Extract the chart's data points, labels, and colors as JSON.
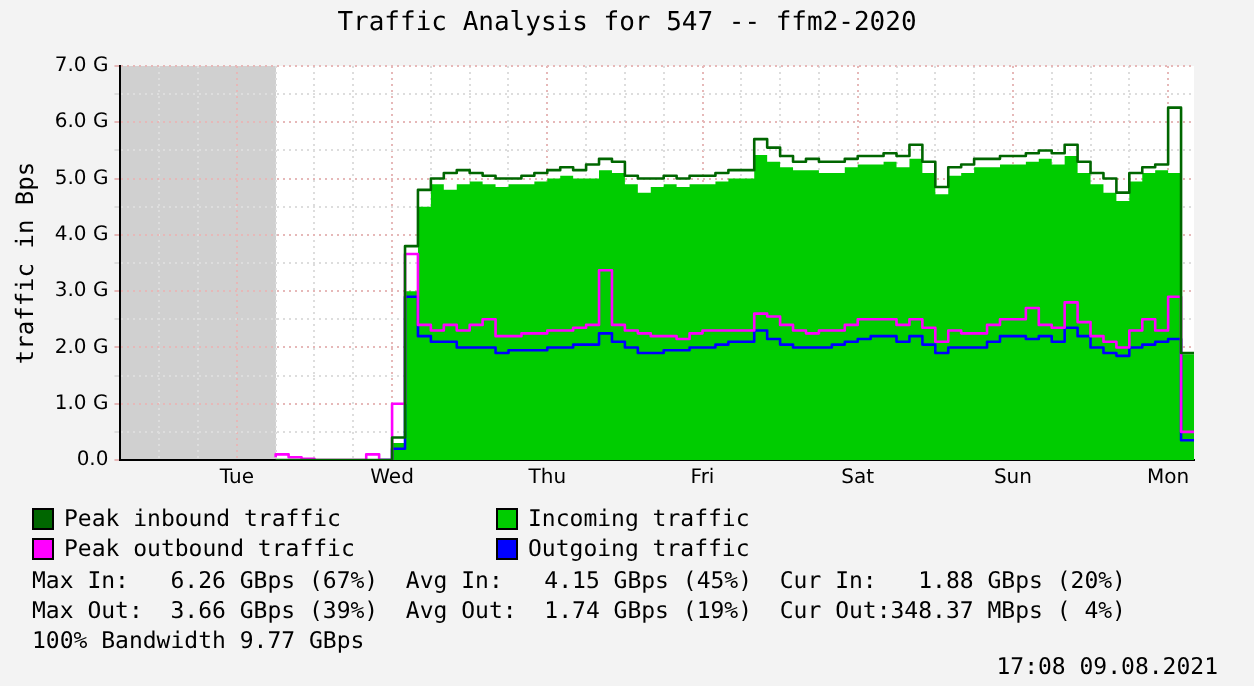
{
  "chart_data": {
    "type": "line",
    "title": "Traffic Analysis for 547 -- ffm2-2020",
    "ylabel": "traffic in Bps",
    "categories": [
      null,
      null,
      null,
      null,
      null,
      null,
      null,
      null,
      null,
      "Tue",
      null,
      null,
      null,
      null,
      null,
      null,
      null,
      null,
      null,
      null,
      null,
      "Wed",
      null,
      null,
      null,
      null,
      null,
      null,
      null,
      null,
      null,
      null,
      null,
      "Thu",
      null,
      null,
      null,
      null,
      null,
      null,
      null,
      null,
      null,
      null,
      null,
      "Fri",
      null,
      null,
      null,
      null,
      null,
      null,
      null,
      null,
      null,
      null,
      null,
      "Sat",
      null,
      null,
      null,
      null,
      null,
      null,
      null,
      null,
      null,
      null,
      null,
      "Sun",
      null,
      null,
      null,
      null,
      null,
      null,
      null,
      null,
      null,
      null,
      null,
      "Mon",
      null,
      null
    ],
    "series": [
      {
        "name": "Peak inbound traffic",
        "type": "step",
        "color": "#006600",
        "values": [
          null,
          null,
          null,
          null,
          null,
          null,
          null,
          null,
          null,
          null,
          null,
          null,
          0,
          0,
          0,
          0,
          0,
          0,
          0,
          0,
          0,
          0,
          0.4,
          3.8,
          4.8,
          5.0,
          5.1,
          5.15,
          5.1,
          5.05,
          5.0,
          5.0,
          5.05,
          5.1,
          5.15,
          5.2,
          5.15,
          5.25,
          5.35,
          5.3,
          5.05,
          5.0,
          5.0,
          5.05,
          5.0,
          5.05,
          5.05,
          5.1,
          5.15,
          5.15,
          5.7,
          5.55,
          5.4,
          5.3,
          5.35,
          5.3,
          5.3,
          5.35,
          5.4,
          5.4,
          5.45,
          5.4,
          5.6,
          5.3,
          4.85,
          5.2,
          5.25,
          5.35,
          5.35,
          5.4,
          5.4,
          5.45,
          5.5,
          5.45,
          5.6,
          5.3,
          5.1,
          5.0,
          4.75,
          5.1,
          5.2,
          5.25,
          6.26,
          1.9
        ]
      },
      {
        "name": "Incoming traffic",
        "type": "area",
        "color": "#00cc00",
        "values": [
          null,
          null,
          null,
          null,
          null,
          null,
          null,
          null,
          null,
          null,
          null,
          null,
          0,
          0,
          0,
          0,
          0,
          0,
          0,
          0,
          0,
          0,
          0.3,
          3.0,
          4.5,
          4.9,
          4.8,
          4.9,
          4.95,
          4.9,
          4.85,
          4.9,
          4.9,
          4.95,
          5.0,
          5.05,
          5.0,
          5.0,
          5.15,
          5.1,
          4.9,
          4.75,
          4.85,
          4.9,
          4.85,
          4.9,
          4.9,
          4.95,
          5.0,
          5.0,
          5.42,
          5.3,
          5.2,
          5.15,
          5.15,
          5.1,
          5.1,
          5.2,
          5.25,
          5.25,
          5.3,
          5.2,
          5.35,
          5.1,
          4.72,
          5.05,
          5.1,
          5.2,
          5.2,
          5.25,
          5.25,
          5.3,
          5.35,
          5.25,
          5.4,
          5.1,
          4.9,
          4.75,
          4.6,
          4.95,
          5.1,
          5.15,
          5.1,
          1.88
        ]
      },
      {
        "name": "Peak outbound traffic",
        "type": "step",
        "color": "#ff00ff",
        "values": [
          null,
          null,
          null,
          null,
          null,
          null,
          null,
          null,
          null,
          null,
          null,
          null,
          0.05,
          0.1,
          0.05,
          0.02,
          0,
          0,
          0,
          0,
          0.1,
          0,
          1.0,
          3.66,
          2.4,
          2.3,
          2.4,
          2.3,
          2.4,
          2.5,
          2.2,
          2.2,
          2.25,
          2.25,
          2.3,
          2.3,
          2.35,
          2.4,
          3.37,
          2.4,
          2.3,
          2.25,
          2.2,
          2.2,
          2.15,
          2.25,
          2.3,
          2.3,
          2.3,
          2.3,
          2.6,
          2.55,
          2.4,
          2.3,
          2.25,
          2.3,
          2.3,
          2.4,
          2.5,
          2.5,
          2.5,
          2.4,
          2.5,
          2.35,
          2.1,
          2.3,
          2.25,
          2.25,
          2.4,
          2.5,
          2.5,
          2.7,
          2.4,
          2.35,
          2.8,
          2.45,
          2.2,
          2.1,
          2.0,
          2.3,
          2.5,
          2.3,
          2.9,
          0.5
        ]
      },
      {
        "name": "Outgoing traffic",
        "type": "step",
        "color": "#0000ff",
        "values": [
          null,
          null,
          null,
          null,
          null,
          null,
          null,
          null,
          null,
          null,
          null,
          null,
          null,
          null,
          null,
          null,
          null,
          null,
          null,
          null,
          0,
          0,
          0.2,
          2.9,
          2.2,
          2.1,
          2.1,
          2.0,
          2.0,
          2.0,
          1.9,
          1.95,
          1.95,
          1.95,
          2.0,
          2.0,
          2.05,
          2.05,
          2.25,
          2.1,
          2.0,
          1.9,
          1.9,
          1.95,
          1.95,
          2.0,
          2.0,
          2.05,
          2.1,
          2.1,
          2.3,
          2.15,
          2.05,
          2.0,
          2.0,
          2.0,
          2.05,
          2.1,
          2.15,
          2.2,
          2.2,
          2.1,
          2.2,
          2.05,
          1.9,
          2.0,
          2.0,
          2.0,
          2.1,
          2.2,
          2.2,
          2.15,
          2.2,
          2.1,
          2.35,
          2.2,
          2.0,
          1.9,
          1.85,
          2.0,
          2.05,
          2.1,
          2.15,
          0.35
        ]
      }
    ],
    "ylim": [
      0,
      7
    ],
    "yticks": [
      {
        "value": 0,
        "label": "0.0"
      },
      {
        "value": 0.5,
        "label": null
      },
      {
        "value": 1,
        "label": "1.0 G"
      },
      {
        "value": 1.5,
        "label": null
      },
      {
        "value": 2,
        "label": "2.0 G"
      },
      {
        "value": 2.5,
        "label": null
      },
      {
        "value": 3,
        "label": "3.0 G"
      },
      {
        "value": 3.5,
        "label": null
      },
      {
        "value": 4,
        "label": "4.0 G"
      },
      {
        "value": 4.5,
        "label": null
      },
      {
        "value": 5,
        "label": "5.0 G"
      },
      {
        "value": 5.5,
        "label": null
      },
      {
        "value": 6,
        "label": "6.0 G"
      },
      {
        "value": 6.5,
        "label": null
      },
      {
        "value": 7,
        "label": "7.0 G"
      }
    ],
    "grid": true,
    "legend": "bottom",
    "annotations": [
      "Max In:   6.26 GBps (67%)  Avg In:   4.15 GBps (45%)  Cur In:   1.88 GBps (20%)",
      "Max Out:  3.66 GBps (39%)  Avg Out:  1.74 GBps (19%)  Cur Out:348.37 MBps ( 4%)",
      "100% Bandwidth 9.77 GBps",
      "17:08 09.08.2021"
    ]
  }
}
